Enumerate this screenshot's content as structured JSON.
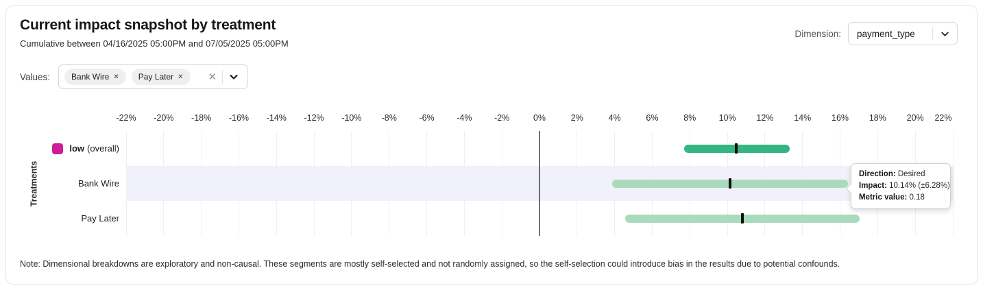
{
  "header": {
    "title": "Current impact snapshot by treatment",
    "subtitle": "Cumulative between 04/16/2025 05:00PM and 07/05/2025 05:00PM",
    "dimension_label": "Dimension:",
    "dimension_value": "payment_type"
  },
  "filters": {
    "values_label": "Values:",
    "chips": [
      {
        "label": "Bank Wire",
        "remove_icon": "✕"
      },
      {
        "label": "Pay Later",
        "remove_icon": "✕"
      }
    ],
    "clear_icon": "✕"
  },
  "chart_data": {
    "type": "bar",
    "subtype": "horizontal-interval",
    "ylabel": "Treatments",
    "x_tick_values": [
      -22,
      -20,
      -18,
      -16,
      -14,
      -12,
      -10,
      -8,
      -6,
      -4,
      -2,
      0,
      2,
      4,
      6,
      8,
      10,
      12,
      14,
      16,
      18,
      20,
      22
    ],
    "x_tick_suffix": "%",
    "xlim": [
      -22,
      22
    ],
    "grid": true,
    "zero_line": true,
    "rows": [
      {
        "label": "low",
        "label_suffix": "(overall)",
        "swatch_color": "#cc1e96",
        "bar_color": "#35b583",
        "ci_low": 7.7,
        "ci_high": 13.3,
        "center": 10.46,
        "highlighted": false
      },
      {
        "label": "Bank Wire",
        "label_suffix": "",
        "swatch_color": "",
        "bar_color": "#a9dabc",
        "ci_low": 3.86,
        "ci_high": 16.42,
        "center": 10.14,
        "highlighted": true
      },
      {
        "label": "Pay Later",
        "label_suffix": "",
        "swatch_color": "",
        "bar_color": "#a9dabc",
        "ci_low": 4.55,
        "ci_high": 17.05,
        "center": 10.8,
        "highlighted": false
      }
    ],
    "highlight_band_color": "#f1f1fb",
    "center_tick_color": "#0c0c0e"
  },
  "tooltip": {
    "direction_label": "Direction:",
    "direction_value": "Desired",
    "impact_label": "Impact:",
    "impact_value": "10.14% (±6.28%)",
    "metric_label": "Metric value:",
    "metric_value": "0.18"
  },
  "note": "Note: Dimensional breakdowns are exploratory and non-causal. These segments are mostly self-selected and not randomly assigned, so the self-selection could introduce bias in the results due to potential confounds."
}
